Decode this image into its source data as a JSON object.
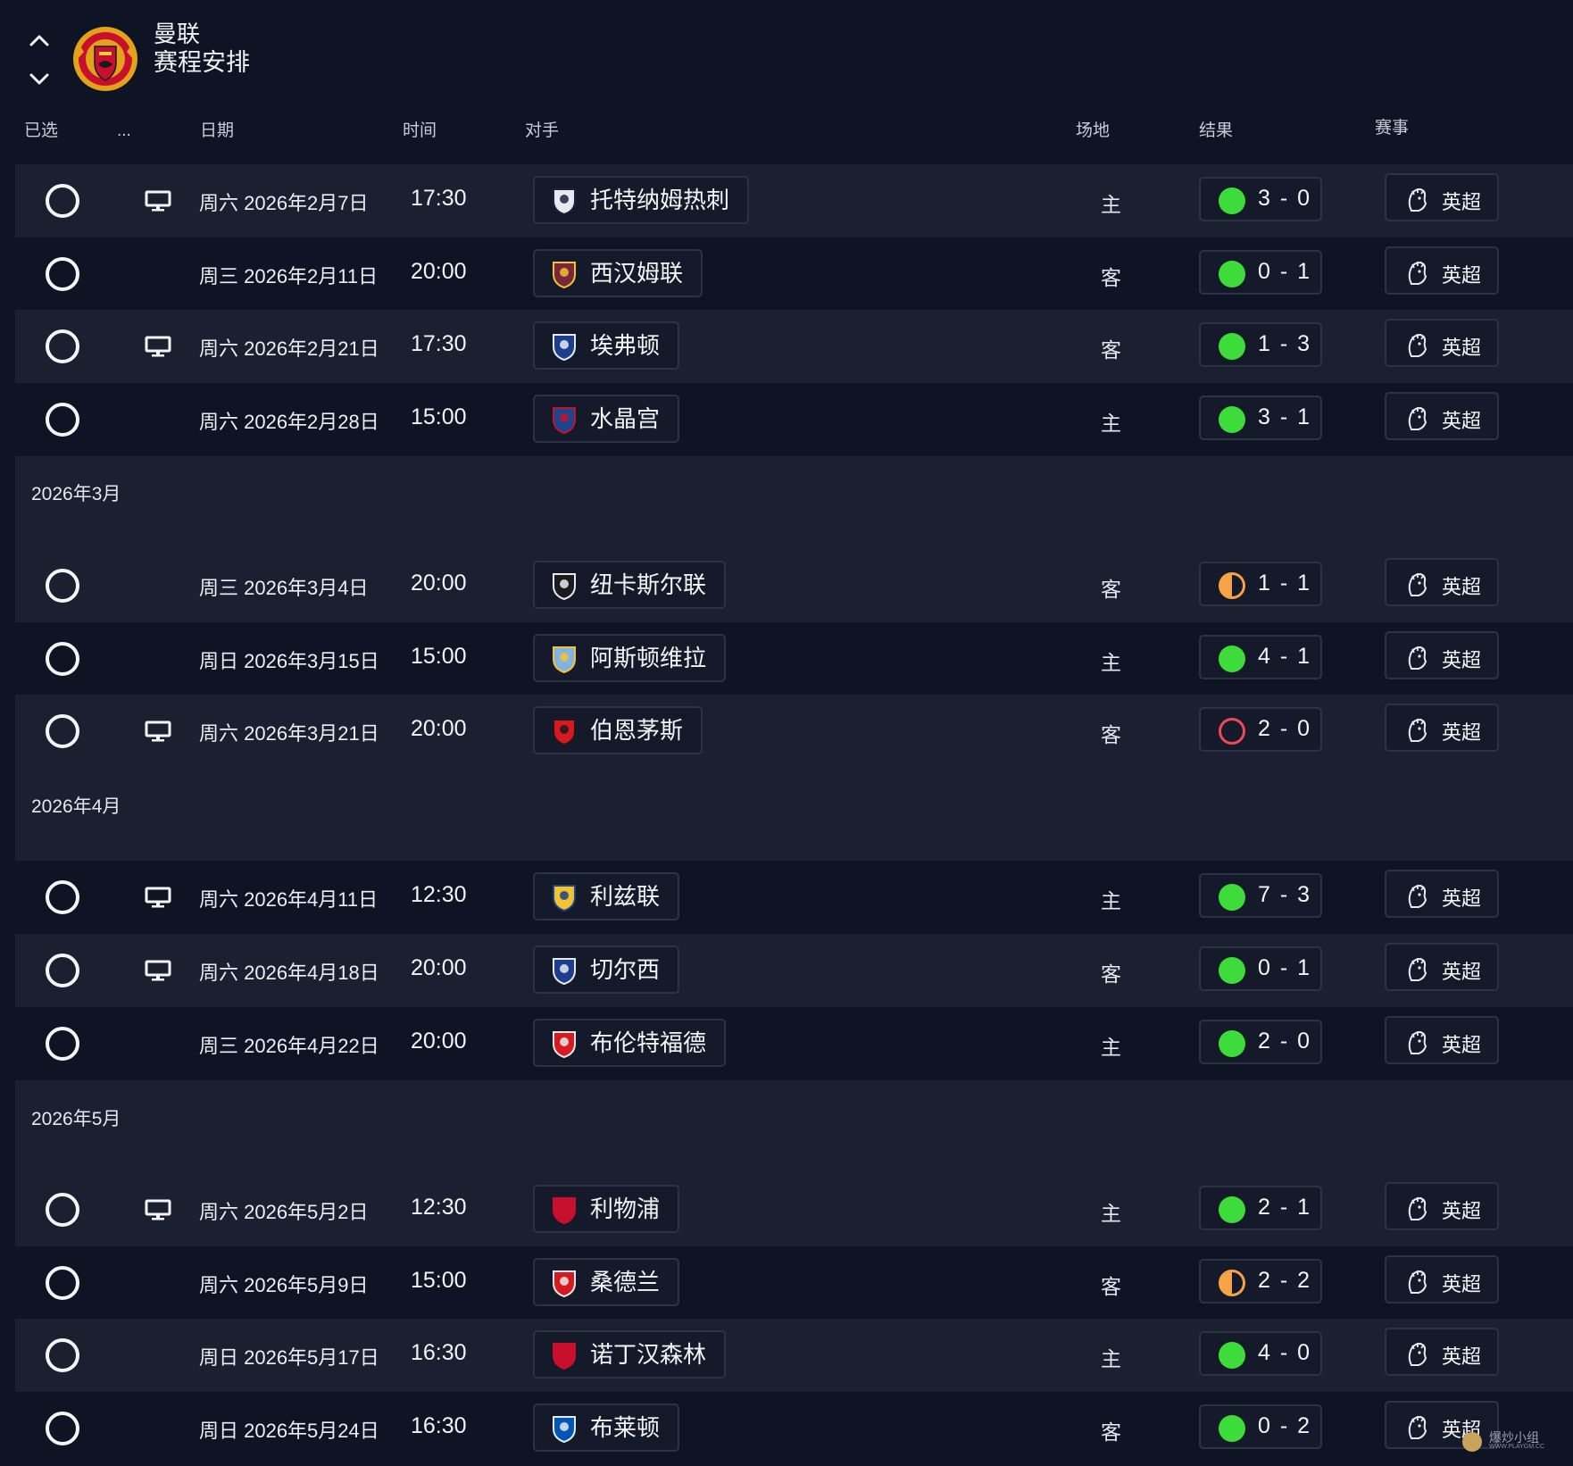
{
  "header": {
    "team": "曼联",
    "subtitle": "赛程安排"
  },
  "columns": {
    "selected": "已选",
    "more": "...",
    "date": "日期",
    "time": "时间",
    "opponent": "对手",
    "venue": "场地",
    "result": "结果",
    "competition": "赛事"
  },
  "months": [
    "2026年3月",
    "2026年4月",
    "2026年5月"
  ],
  "colors": {
    "win": "#3ddc3a",
    "draw": "#f6a347",
    "loss": "#ef4856",
    "background": "#0f1424",
    "row_alt": "#1b2030"
  },
  "matches": [
    {
      "tv": true,
      "date": "周六 2026年2月7日",
      "time": "17:30",
      "opponent": "托特纳姆热刺",
      "opponent_logo": "tottenham-crest",
      "venue": "主",
      "outcome": "win",
      "score": "3 - 0",
      "competition": "英超"
    },
    {
      "tv": false,
      "date": "周三 2026年2月11日",
      "time": "20:00",
      "opponent": "西汉姆联",
      "opponent_logo": "west-ham-crest",
      "venue": "客",
      "outcome": "win",
      "score": "0 - 1",
      "competition": "英超"
    },
    {
      "tv": true,
      "date": "周六 2026年2月21日",
      "time": "17:30",
      "opponent": "埃弗顿",
      "opponent_logo": "everton-crest",
      "venue": "客",
      "outcome": "win",
      "score": "1 - 3",
      "competition": "英超"
    },
    {
      "tv": false,
      "date": "周六 2026年2月28日",
      "time": "15:00",
      "opponent": "水晶宫",
      "opponent_logo": "crystal-palace-crest",
      "venue": "主",
      "outcome": "win",
      "score": "3 - 1",
      "competition": "英超"
    },
    {
      "tv": false,
      "date": "周三 2026年3月4日",
      "time": "20:00",
      "opponent": "纽卡斯尔联",
      "opponent_logo": "newcastle-crest",
      "venue": "客",
      "outcome": "draw",
      "score": "1 - 1",
      "competition": "英超"
    },
    {
      "tv": false,
      "date": "周日 2026年3月15日",
      "time": "15:00",
      "opponent": "阿斯顿维拉",
      "opponent_logo": "aston-villa-crest",
      "venue": "主",
      "outcome": "win",
      "score": "4 - 1",
      "competition": "英超"
    },
    {
      "tv": true,
      "date": "周六 2026年3月21日",
      "time": "20:00",
      "opponent": "伯恩茅斯",
      "opponent_logo": "bournemouth-crest",
      "venue": "客",
      "outcome": "loss",
      "score": "2 - 0",
      "competition": "英超"
    },
    {
      "tv": true,
      "date": "周六 2026年4月11日",
      "time": "12:30",
      "opponent": "利兹联",
      "opponent_logo": "leeds-crest",
      "venue": "主",
      "outcome": "win",
      "score": "7 - 3",
      "competition": "英超"
    },
    {
      "tv": true,
      "date": "周六 2026年4月18日",
      "time": "20:00",
      "opponent": "切尔西",
      "opponent_logo": "chelsea-crest",
      "venue": "客",
      "outcome": "win",
      "score": "0 - 1",
      "competition": "英超"
    },
    {
      "tv": false,
      "date": "周三 2026年4月22日",
      "time": "20:00",
      "opponent": "布伦特福德",
      "opponent_logo": "brentford-crest",
      "venue": "主",
      "outcome": "win",
      "score": "2 - 0",
      "competition": "英超"
    },
    {
      "tv": true,
      "date": "周六 2026年5月2日",
      "time": "12:30",
      "opponent": "利物浦",
      "opponent_logo": "liverpool-crest",
      "venue": "主",
      "outcome": "win",
      "score": "2 - 1",
      "competition": "英超"
    },
    {
      "tv": false,
      "date": "周六 2026年5月9日",
      "time": "15:00",
      "opponent": "桑德兰",
      "opponent_logo": "sunderland-crest",
      "venue": "客",
      "outcome": "draw",
      "score": "2 - 2",
      "competition": "英超"
    },
    {
      "tv": false,
      "date": "周日 2026年5月17日",
      "time": "16:30",
      "opponent": "诺丁汉森林",
      "opponent_logo": "nottingham-forest-crest",
      "venue": "主",
      "outcome": "win",
      "score": "4 - 0",
      "competition": "英超"
    },
    {
      "tv": false,
      "date": "周日 2026年5月24日",
      "time": "16:30",
      "opponent": "布莱顿",
      "opponent_logo": "brighton-crest",
      "venue": "客",
      "outcome": "win",
      "score": "0 - 2",
      "competition": "英超"
    }
  ],
  "watermark": {
    "text": "爆炒小组",
    "url": "WWW.PLAYGM.CC"
  }
}
